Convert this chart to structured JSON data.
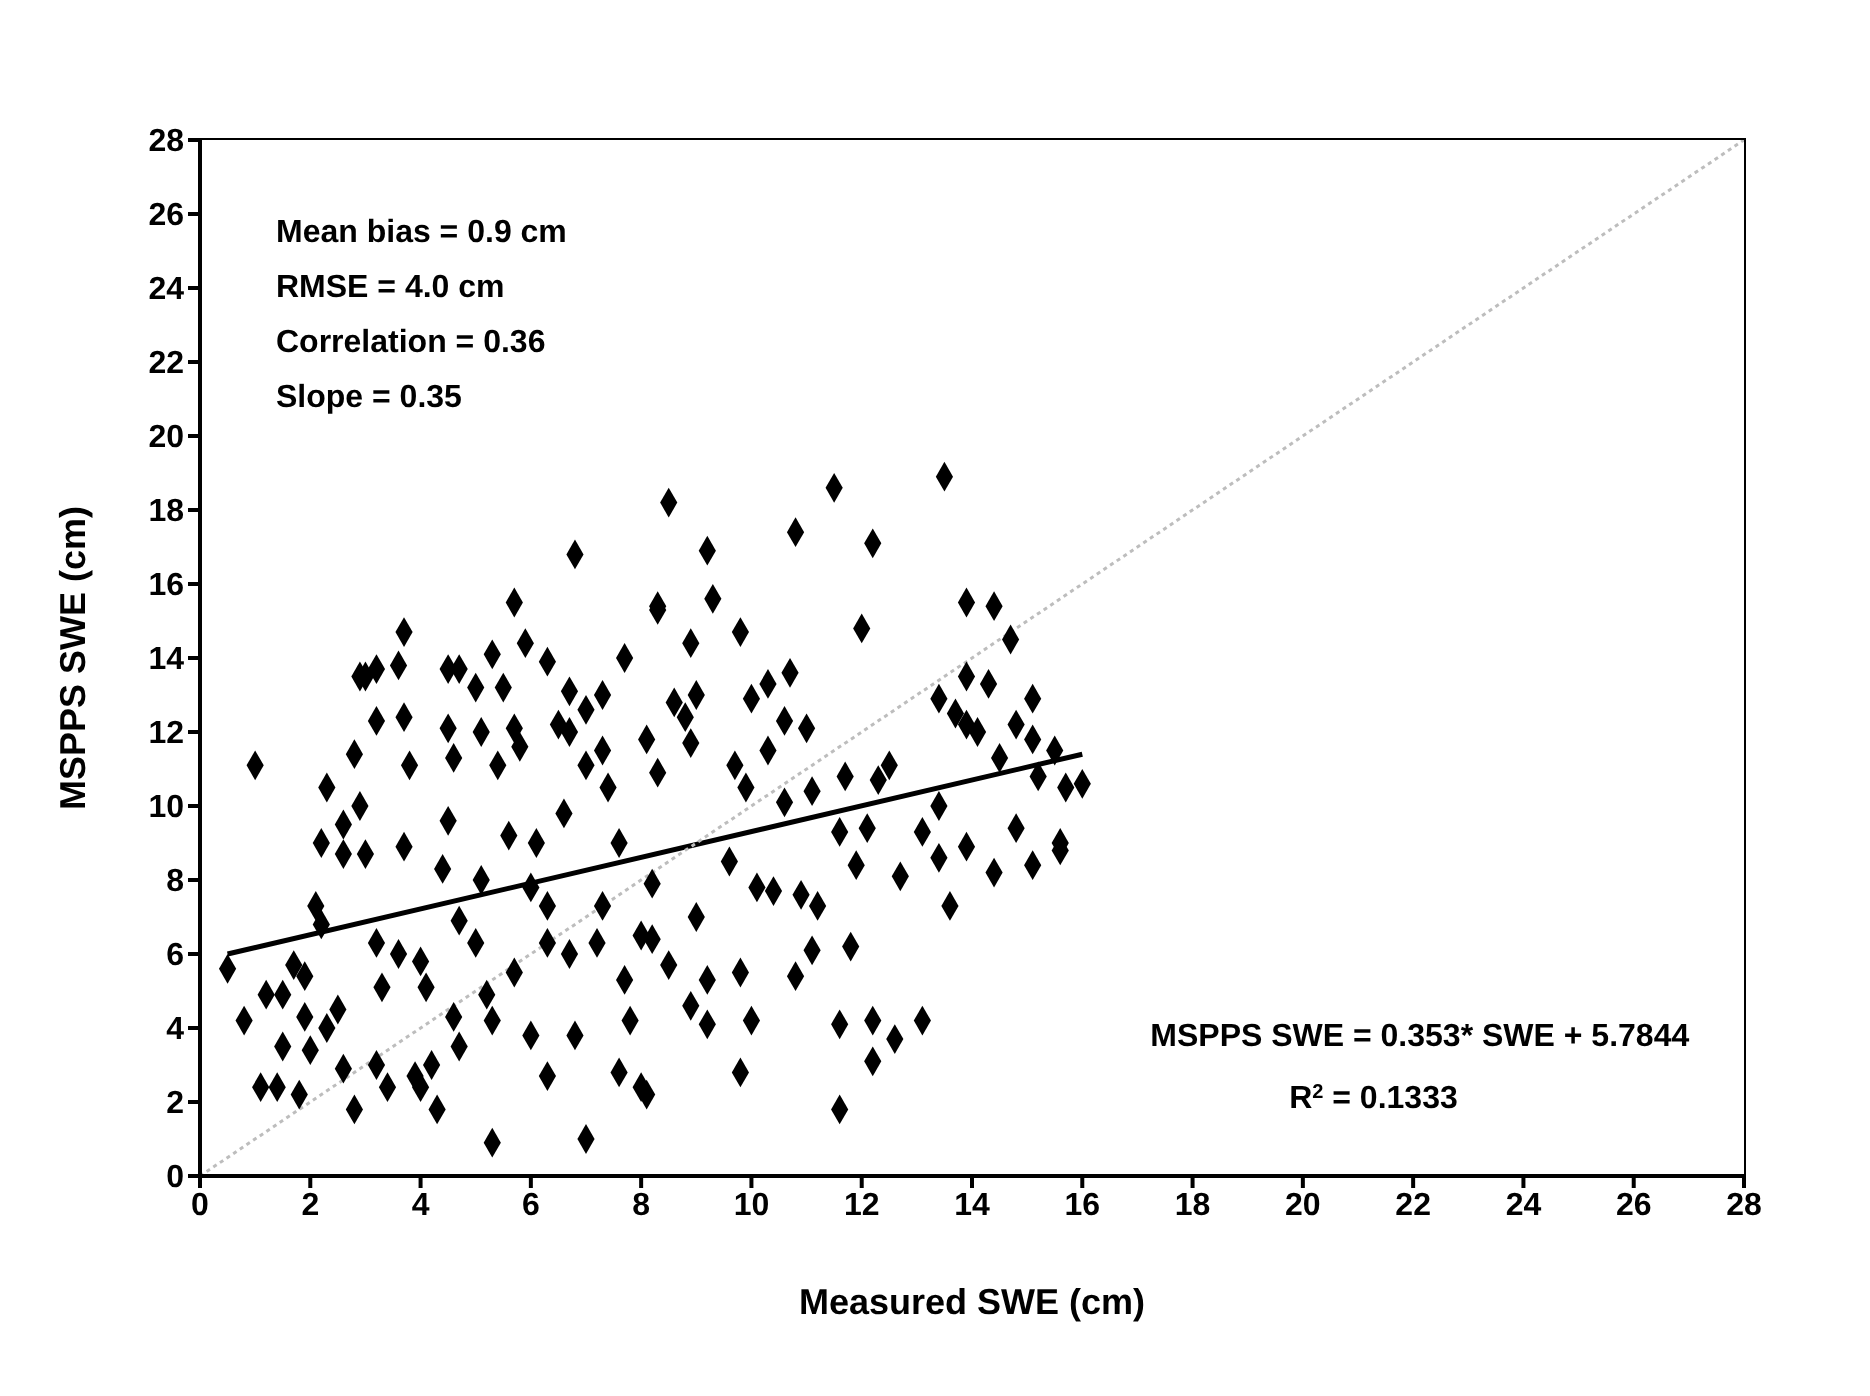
{
  "chart_data": {
    "type": "scatter",
    "xlabel": "Measured SWE (cm)",
    "ylabel": "MSPPS SWE (cm)",
    "xlim": [
      0,
      28
    ],
    "ylim": [
      0,
      28
    ],
    "xticks": [
      0,
      2,
      4,
      6,
      8,
      10,
      12,
      14,
      16,
      18,
      20,
      22,
      24,
      26,
      28
    ],
    "yticks": [
      0,
      2,
      4,
      6,
      8,
      10,
      12,
      14,
      16,
      18,
      20,
      22,
      24,
      26,
      28
    ],
    "grid": false,
    "marker": "diamond",
    "series": [
      {
        "type": "scatter",
        "color": "#000000",
        "x": [
          1.0,
          13.5,
          11.5,
          8.5,
          12.2,
          10.8,
          9.2,
          6.8,
          5.7,
          9.3,
          8.3,
          13.9,
          14.4,
          14.7,
          3.7,
          3.0,
          4.7,
          5.3,
          5.9,
          12.0,
          13.9,
          14.3,
          15.1,
          13.4,
          13.7,
          14.8,
          15.1,
          14.5,
          15.5,
          15.7,
          15.2,
          16.0,
          15.6,
          0.5,
          0.8,
          1.2,
          1.1,
          1.4,
          1.8,
          1.5,
          1.7,
          1.9,
          2.2,
          2.1,
          2.6,
          2.2,
          2.6,
          1.9,
          1.5,
          2.0,
          2.3,
          2.6,
          2.8,
          2.5,
          3.2,
          3.4,
          3.0,
          3.2,
          3.3,
          3.6,
          3.7,
          3.9,
          4.0,
          4.2,
          4.3,
          4.1,
          4.0,
          4.7,
          4.6,
          4.4,
          4.5,
          4.7,
          5.0,
          5.2,
          5.3,
          5.3,
          5.7,
          6.0,
          6.3,
          6.3,
          6.7,
          6.8,
          7.0,
          7.6,
          8.0,
          7.8,
          7.7,
          8.0,
          7.2,
          7.3,
          6.3,
          6.0,
          5.1,
          5.6,
          6.1,
          6.6,
          7.6,
          2.3,
          2.9,
          3.2,
          3.6,
          3.2,
          3.7,
          2.8,
          2.9,
          3.8,
          4.5,
          6.3,
          5.0,
          5.5,
          6.7,
          7.3,
          7.0,
          7.7,
          4.5,
          5.1,
          5.7,
          6.5,
          4.6,
          5.4,
          5.8,
          6.7,
          7.3,
          8.1,
          8.3,
          7.0,
          7.4,
          9.8,
          8.9,
          10.3,
          10.7,
          9.0,
          8.6,
          10.0,
          8.8,
          10.6,
          11.0,
          8.9,
          10.3,
          9.7,
          8.3,
          13.9,
          14.1,
          13.4,
          12.5,
          12.3,
          11.7,
          11.1,
          9.9,
          10.6,
          14.8,
          15.6,
          15.1,
          14.4,
          13.9,
          13.4,
          13.6,
          13.1,
          12.7,
          12.1,
          11.6,
          11.9,
          11.2,
          10.9,
          10.4,
          10.1,
          9.6,
          9.0,
          8.2,
          8.2,
          8.5,
          9.2,
          9.8,
          10.8,
          11.1,
          11.8,
          8.9,
          9.2,
          10.0,
          11.6,
          12.2,
          12.6,
          13.1,
          12.2,
          9.8,
          11.6,
          8.1
        ],
        "values": [
          11.1,
          18.9,
          18.6,
          18.2,
          17.1,
          17.4,
          16.9,
          16.8,
          15.5,
          15.6,
          15.3,
          15.5,
          15.4,
          14.5,
          14.7,
          13.5,
          13.7,
          14.1,
          14.4,
          14.8,
          13.5,
          13.3,
          12.9,
          12.9,
          12.5,
          12.2,
          11.8,
          11.3,
          11.5,
          10.5,
          10.8,
          10.6,
          9.0,
          5.6,
          4.2,
          4.9,
          2.4,
          2.4,
          2.2,
          4.9,
          5.7,
          5.4,
          6.8,
          7.3,
          8.7,
          9.0,
          9.5,
          4.3,
          3.5,
          3.4,
          4.0,
          2.9,
          1.8,
          4.5,
          3.0,
          2.4,
          8.7,
          6.3,
          5.1,
          6.0,
          8.9,
          2.7,
          2.4,
          3.0,
          1.8,
          5.1,
          5.8,
          3.5,
          4.3,
          8.3,
          9.6,
          6.9,
          6.3,
          4.9,
          4.2,
          0.9,
          5.5,
          3.8,
          2.7,
          6.3,
          6.0,
          3.8,
          1.0,
          2.8,
          2.4,
          4.2,
          5.3,
          6.5,
          6.3,
          7.3,
          7.3,
          7.8,
          8.0,
          9.2,
          9.0,
          9.8,
          9.0,
          10.5,
          13.5,
          13.7,
          13.8,
          12.3,
          12.4,
          11.4,
          10.0,
          11.1,
          13.7,
          13.9,
          13.2,
          13.2,
          13.1,
          13.0,
          12.6,
          14.0,
          12.1,
          12.0,
          12.1,
          12.2,
          11.3,
          11.1,
          11.6,
          12.0,
          11.5,
          11.8,
          15.4,
          11.1,
          10.5,
          14.7,
          14.4,
          13.3,
          13.6,
          13.0,
          12.8,
          12.9,
          12.4,
          12.3,
          12.1,
          11.7,
          11.5,
          11.1,
          10.9,
          12.2,
          12.0,
          10.0,
          11.1,
          10.7,
          10.8,
          10.4,
          10.5,
          10.1,
          9.4,
          8.8,
          8.4,
          8.2,
          8.9,
          8.6,
          7.3,
          9.3,
          8.1,
          9.4,
          9.3,
          8.4,
          7.3,
          7.6,
          7.7,
          7.8,
          8.5,
          7.0,
          7.9,
          6.4,
          5.7,
          5.3,
          5.5,
          5.4,
          6.1,
          6.2,
          4.6,
          4.1,
          4.2,
          4.1,
          4.2,
          3.7,
          4.2,
          3.1,
          2.8,
          1.8,
          2.2
        ]
      },
      {
        "type": "line",
        "color": "#000000",
        "line_style": "solid",
        "marker": "none",
        "x": [
          0.5,
          16
        ],
        "values": [
          6.0,
          11.4
        ]
      },
      {
        "type": "line",
        "color": "#bdbdbd",
        "line_style": "dotted",
        "marker": "none",
        "x": [
          0,
          28
        ],
        "values": [
          0,
          28
        ]
      }
    ],
    "annotations": [
      "Mean bias = 0.9 cm",
      "RMSE = 4.0 cm",
      "Correlation = 0.36",
      "Slope = 0.35",
      "MSPPS SWE  = 0.353* SWE + 5.7844",
      "R$^{2}$ = 0.1333"
    ]
  }
}
